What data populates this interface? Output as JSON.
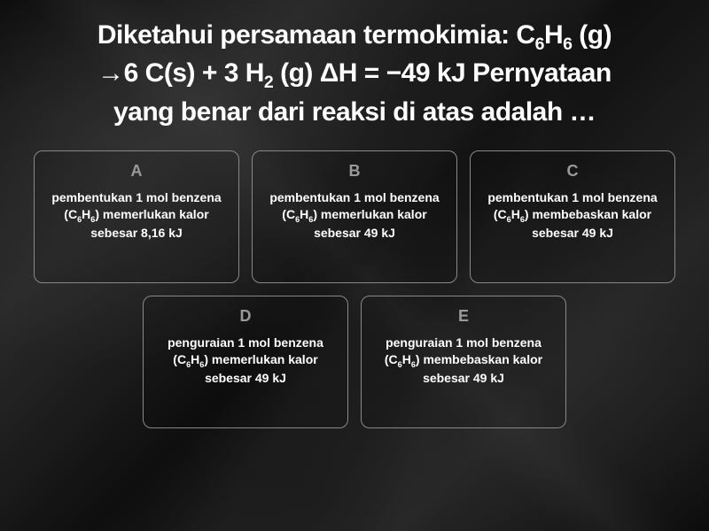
{
  "question": {
    "line1_pre": "Diketahui persamaan termokimia: C",
    "line1_sub1": "6",
    "line1_mid1": "H",
    "line1_sub2": "6",
    "line1_post": " (g)",
    "line2_pre": "→6 C(s) + 3 H",
    "line2_sub1": "2",
    "line2_post": " (g) ΔH = −49 kJ Pernyataan",
    "line3": "yang benar dari reaksi di atas adalah …"
  },
  "options": [
    {
      "letter": "A",
      "pre": "pembentukan 1 mol benzena (C",
      "sub1": "6",
      "mid": "H",
      "sub2": "6",
      "post": ") memerlukan kalor sebesar 8,16 kJ"
    },
    {
      "letter": "B",
      "pre": "pembentukan 1 mol benzena (C",
      "sub1": "6",
      "mid": "H",
      "sub2": "6",
      "post": ") memerlukan kalor sebesar 49 kJ"
    },
    {
      "letter": "C",
      "pre": "pembentukan 1 mol benzena (C",
      "sub1": "6",
      "mid": "H",
      "sub2": "6",
      "post": ") membebaskan kalor sebesar 49 kJ"
    },
    {
      "letter": "D",
      "pre": "penguraian 1 mol benzena (C",
      "sub1": "6",
      "mid": "H",
      "sub2": "6",
      "post": ") memerlukan kalor sebesar 49 kJ"
    },
    {
      "letter": "E",
      "pre": "penguraian 1 mol benzena (C",
      "sub1": "6",
      "mid": "H",
      "sub2": "6",
      "post": ") membebaskan kalor sebesar 49 kJ"
    }
  ],
  "colors": {
    "text": "#ffffff",
    "letter": "#9a9a9a",
    "border": "#888888",
    "background": "#1a1a1a"
  }
}
